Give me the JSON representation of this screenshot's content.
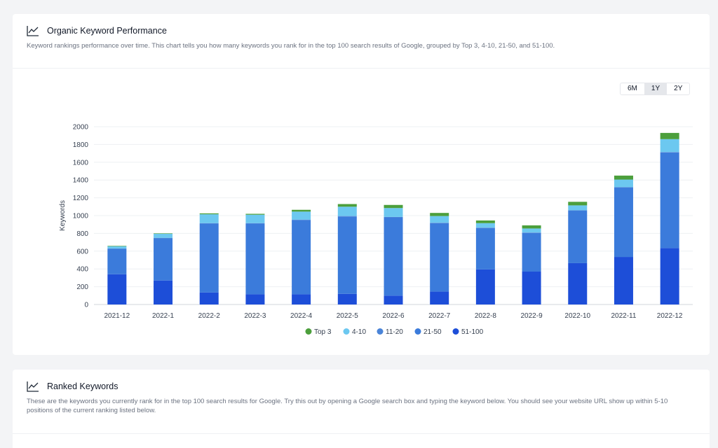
{
  "performance": {
    "title": "Organic Keyword Performance",
    "description": "Keyword rankings performance over time. This chart tells you how many keywords you rank for in the top 100 search results of Google, grouped by Top 3, 4-10, 21-50, and 51-100.",
    "icon": "line-chart-icon",
    "ranges": [
      "6M",
      "1Y",
      "2Y"
    ],
    "active_range": "1Y"
  },
  "ranked": {
    "title": "Ranked Keywords",
    "description": "These are the keywords you currently rank for in the top 100 search results for Google. Try this out by opening a Google search box and typing the keyword below. You should see your website URL show up within 5-10 positions of the current ranking listed below.",
    "icon": "line-chart-icon"
  },
  "chart_data": {
    "type": "bar",
    "stacked": true,
    "categories": [
      "2021-12",
      "2022-1",
      "2022-2",
      "2022-3",
      "2022-4",
      "2022-5",
      "2022-6",
      "2022-7",
      "2022-8",
      "2022-9",
      "2022-10",
      "2022-11",
      "2022-12"
    ],
    "series": [
      {
        "name": "51-100",
        "color": "#1d4ed8",
        "values": [
          340,
          270,
          135,
          115,
          115,
          120,
          100,
          145,
          395,
          370,
          465,
          535,
          635
        ]
      },
      {
        "name": "21-50",
        "color": "#3b7bdb",
        "values": [
          285,
          470,
          775,
          795,
          835,
          870,
          880,
          770,
          465,
          435,
          590,
          780,
          1075
        ]
      },
      {
        "name": "11-20",
        "color": "#4a84d8",
        "values": [
          5,
          10,
          5,
          5,
          5,
          5,
          5,
          5,
          5,
          5,
          5,
          5,
          5
        ]
      },
      {
        "name": "4-10",
        "color": "#6cc8f0",
        "values": [
          25,
          45,
          100,
          95,
          90,
          105,
          100,
          75,
          50,
          45,
          55,
          85,
          145
        ]
      },
      {
        "name": "Top 3",
        "color": "#4c9f3c",
        "values": [
          5,
          5,
          10,
          10,
          20,
          30,
          35,
          35,
          30,
          35,
          40,
          45,
          70
        ]
      }
    ],
    "legend_order": [
      "Top 3",
      "4-10",
      "11-20",
      "21-50",
      "51-100"
    ],
    "ylabel": "Keywords",
    "xlabel": "",
    "ylim": [
      0,
      2000
    ],
    "yticks": [
      0,
      200,
      400,
      600,
      800,
      1000,
      1200,
      1400,
      1600,
      1800,
      2000
    ],
    "grid": true,
    "legend_position": "bottom"
  }
}
